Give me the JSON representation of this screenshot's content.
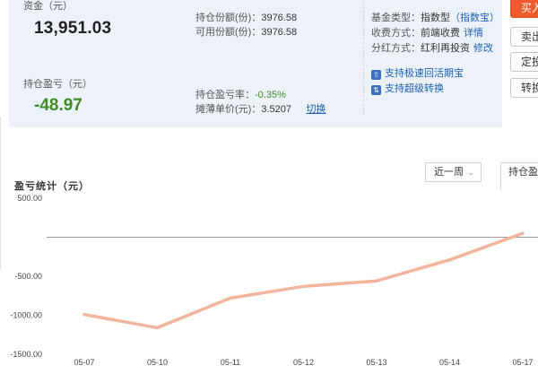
{
  "summary": {
    "assets_label": "资金（元）",
    "assets_value": "13,951.03",
    "holding_pl_label": "持仓盈亏（元）",
    "holding_pl_value": "-48.97",
    "holding_shares_label": "持仓份额(份)：",
    "holding_shares_value": "3976.58",
    "available_shares_label": "可用份额(份)：",
    "available_shares_value": "3976.58",
    "pl_rate_label": "持仓盈亏率：",
    "pl_rate_value": "-0.35%",
    "unit_cost_label": "摊薄单价(元)：",
    "unit_cost_value": "3.5207",
    "switch_link": "切换"
  },
  "fund_info": {
    "type_label": "基金类型：",
    "type_value": "指数型",
    "type_link": "（指数宝）",
    "fee_label": "收费方式：",
    "fee_value": "前端收费",
    "fee_link": "详情",
    "dividend_label": "分红方式：",
    "dividend_value": "红利再投资",
    "dividend_link": "修改",
    "feature1": "支持极速回活期宝",
    "feature2": "支持超级转换"
  },
  "side_buttons": [
    "买入",
    "卖出",
    "定投",
    "转换"
  ],
  "chart_section": {
    "title": "盈亏统计（元）",
    "period_select": "近一周",
    "metric_select": "持仓盈亏"
  },
  "chart_data": {
    "type": "line",
    "x": [
      "05-07",
      "05-10",
      "05-11",
      "05-12",
      "05-13",
      "05-14",
      "05-17"
    ],
    "y": [
      -990,
      -1160,
      -780,
      -630,
      -560,
      -290,
      50
    ],
    "y_ticks": [
      "500.00",
      "-500.00",
      "-1000.00",
      "-1500.00"
    ],
    "ylim": [
      -1500,
      500
    ],
    "series_color": "#f2b49a",
    "zero_line_color": "#9a9a9a"
  }
}
